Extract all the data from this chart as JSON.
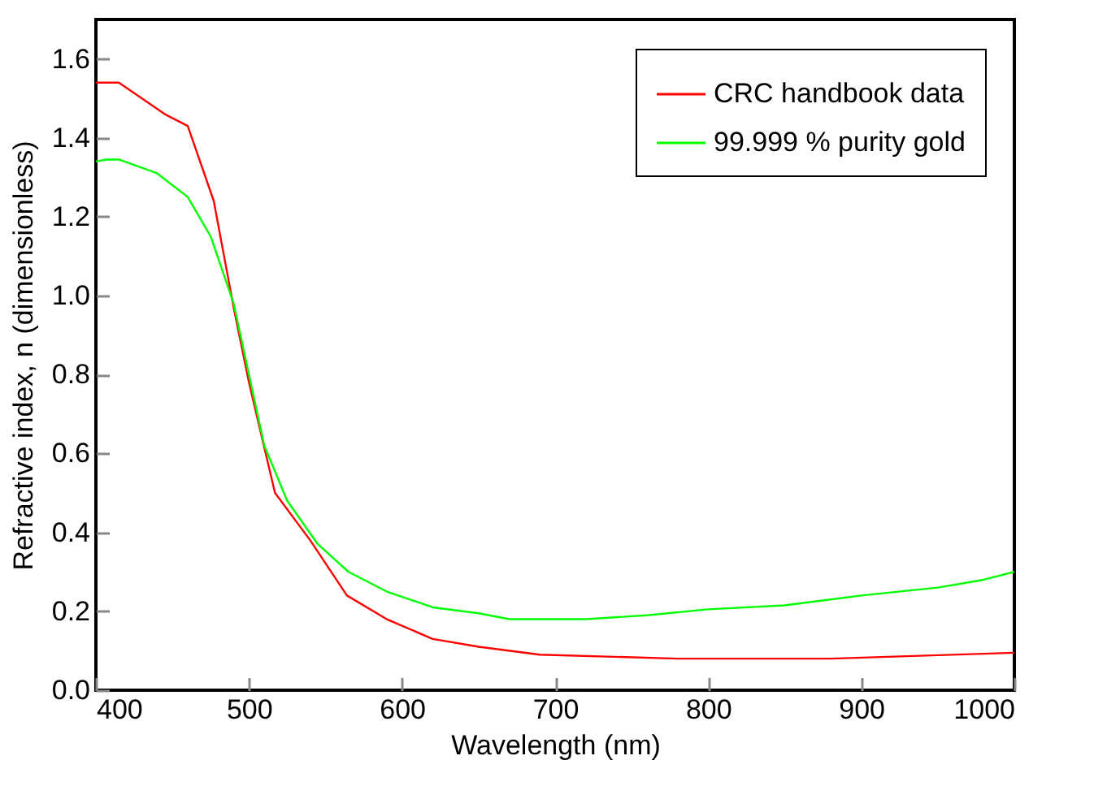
{
  "chart_data": {
    "type": "line",
    "xlabel": "Wavelength (nm)",
    "ylabel": "Refractive index, n  (dimensionless)",
    "xlim": [
      400,
      1000
    ],
    "xticks": [
      400,
      500,
      600,
      700,
      800,
      900,
      1000
    ],
    "ylim": [
      0,
      1.7
    ],
    "yticks": [
      {
        "value": 0,
        "label": "0.0"
      },
      {
        "value": 0.2,
        "label": "0.2"
      },
      {
        "value": 0.4,
        "label": "0.4"
      },
      {
        "value": 0.6,
        "label": "0.6"
      },
      {
        "value": 0.8,
        "label": "0.8"
      },
      {
        "value": 1,
        "label": "1.0"
      },
      {
        "value": 1.2,
        "label": "1.2"
      },
      {
        "value": 1.4,
        "label": "1.4"
      },
      {
        "value": 1.6,
        "label": "1.6"
      }
    ],
    "legend": "top right",
    "grid": false,
    "series": [
      {
        "name": "CRC handbook data",
        "color": "#ff0000",
        "x": [
          400,
          415,
          445,
          460,
          477,
          490,
          500,
          517,
          540,
          564,
          590,
          620,
          650,
          690,
          780,
          880,
          1000
        ],
        "values": [
          1.54,
          1.54,
          1.46,
          1.43,
          1.24,
          0.97,
          0.78,
          0.5,
          0.38,
          0.24,
          0.18,
          0.13,
          0.11,
          0.09,
          0.08,
          0.08,
          0.095
        ]
      },
      {
        "name": "99.999 % purity gold",
        "color": "#00ff00",
        "x": [
          400,
          407,
          415,
          440,
          460,
          475,
          490,
          500,
          510,
          525,
          545,
          565,
          590,
          620,
          650,
          670,
          720,
          760,
          800,
          850,
          900,
          950,
          980,
          1000
        ],
        "values": [
          1.34,
          1.345,
          1.345,
          1.31,
          1.25,
          1.15,
          0.98,
          0.8,
          0.62,
          0.48,
          0.37,
          0.3,
          0.25,
          0.21,
          0.195,
          0.18,
          0.18,
          0.19,
          0.205,
          0.215,
          0.24,
          0.26,
          0.28,
          0.3
        ]
      }
    ]
  }
}
